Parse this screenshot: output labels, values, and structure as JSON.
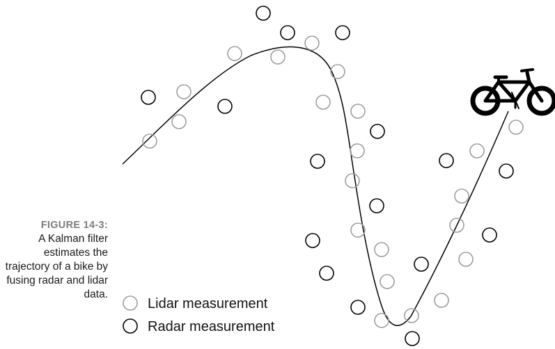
{
  "caption": {
    "label": "FIGURE 14-3:",
    "text": "A Kalman filter estimates the trajectory of a bike by fusing radar and lidar data."
  },
  "legend": {
    "lidar_label": "Lidar measurement",
    "radar_label": "Radar measurement"
  },
  "colors": {
    "lidar": "#9e9e9e",
    "radar": "#000000",
    "trajectory": "#000000"
  },
  "icons": [
    "bicycle-icon"
  ]
}
